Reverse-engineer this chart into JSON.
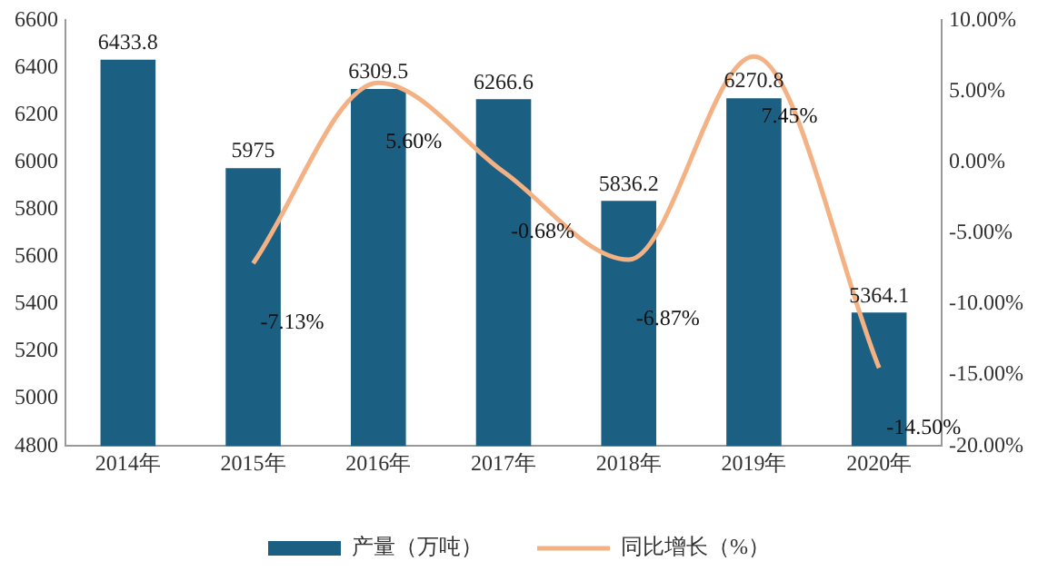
{
  "chart_data": {
    "type": "bar",
    "categories": [
      "2014年",
      "2015年",
      "2016年",
      "2017年",
      "2018年",
      "2019年",
      "2020年"
    ],
    "series": [
      {
        "name": "产量（万吨）",
        "color": "#1b6083",
        "values": [
          6433.8,
          5975,
          6309.5,
          6266.6,
          5836.2,
          6270.8,
          5364.1
        ],
        "value_labels": [
          "6433.8",
          "5975",
          "6309.5",
          "6266.6",
          "5836.2",
          "6270.8",
          "5364.1"
        ]
      },
      {
        "name": "同比增长（%）",
        "type": "line",
        "axis": "y2",
        "color": "#f4b183",
        "values": [
          null,
          -7.13,
          5.6,
          -0.68,
          -6.87,
          7.45,
          -14.5
        ],
        "value_labels": [
          null,
          "-7.13%",
          "5.60%",
          "-0.68%",
          "-6.87%",
          "7.45%",
          "-14.50%"
        ]
      }
    ],
    "ylim": [
      4800,
      6600
    ],
    "yticks": [
      4800,
      5000,
      5200,
      5400,
      5600,
      5800,
      6000,
      6200,
      6400,
      6600
    ],
    "y2lim": [
      -20,
      10
    ],
    "y2ticks": [
      {
        "value": -20,
        "label": "-20.00%"
      },
      {
        "value": -15,
        "label": "-15.00%"
      },
      {
        "value": -10,
        "label": "-10.00%"
      },
      {
        "value": -5,
        "label": "-5.00%"
      },
      {
        "value": 0,
        "label": "0.00%"
      },
      {
        "value": 5,
        "label": "5.00%"
      },
      {
        "value": 10,
        "label": "10.00%"
      }
    ],
    "grid": false,
    "legend": "bottom",
    "marker": "none",
    "line_style": "solid"
  }
}
